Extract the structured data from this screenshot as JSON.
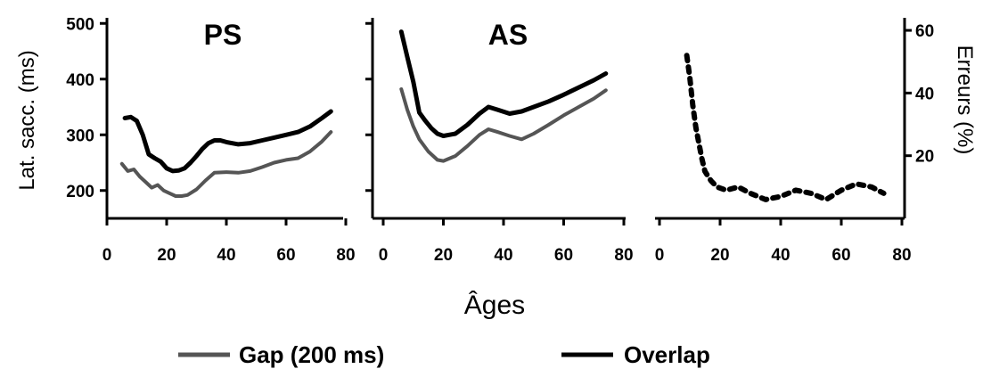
{
  "chart_data": [
    {
      "type": "line",
      "title": "PS",
      "ylabel": "Lat. sacc. (ms)",
      "xlim": [
        0,
        80
      ],
      "ylim": [
        150,
        510
      ],
      "xticks": [
        "0",
        "20",
        "40",
        "60",
        "80"
      ],
      "yticks": [
        "200",
        "300",
        "400",
        "500"
      ],
      "series": [
        {
          "name": "Overlap",
          "color": "#000000",
          "x": [
            6,
            8,
            10,
            12,
            14,
            16,
            18,
            20,
            22,
            24,
            26,
            28,
            30,
            32,
            34,
            36,
            38,
            40,
            44,
            48,
            52,
            56,
            60,
            64,
            68,
            72,
            75
          ],
          "y": [
            330,
            332,
            325,
            300,
            265,
            258,
            252,
            240,
            235,
            236,
            240,
            250,
            262,
            275,
            285,
            290,
            290,
            287,
            283,
            285,
            290,
            295,
            300,
            305,
            315,
            330,
            342
          ]
        },
        {
          "name": "Gap (200 ms)",
          "color": "#555555",
          "x": [
            5,
            7,
            9,
            11,
            13,
            15,
            17,
            19,
            21,
            23,
            25,
            27,
            30,
            33,
            36,
            40,
            44,
            48,
            52,
            56,
            60,
            64,
            68,
            72,
            75
          ],
          "y": [
            248,
            235,
            238,
            225,
            215,
            205,
            210,
            200,
            195,
            190,
            190,
            192,
            202,
            218,
            232,
            233,
            232,
            235,
            242,
            250,
            255,
            258,
            270,
            288,
            305
          ]
        }
      ]
    },
    {
      "type": "line",
      "title": "AS",
      "xlim": [
        0,
        80
      ],
      "ylim": [
        150,
        510
      ],
      "xticks": [
        "0",
        "20",
        "40",
        "60",
        "80"
      ],
      "series": [
        {
          "name": "Overlap",
          "color": "#000000",
          "x": [
            6,
            8,
            10,
            12,
            14,
            16,
            18,
            20,
            24,
            28,
            32,
            35,
            38,
            42,
            46,
            50,
            55,
            60,
            65,
            70,
            74
          ],
          "y": [
            485,
            440,
            395,
            340,
            325,
            312,
            302,
            298,
            302,
            318,
            338,
            350,
            345,
            338,
            342,
            350,
            360,
            372,
            385,
            398,
            410
          ]
        },
        {
          "name": "Gap (200 ms)",
          "color": "#555555",
          "x": [
            6,
            8,
            10,
            12,
            15,
            18,
            20,
            24,
            28,
            32,
            35,
            38,
            42,
            46,
            50,
            55,
            60,
            65,
            70,
            74
          ],
          "y": [
            382,
            345,
            315,
            292,
            270,
            255,
            253,
            262,
            280,
            300,
            310,
            305,
            298,
            292,
            302,
            318,
            335,
            350,
            365,
            380
          ]
        }
      ]
    },
    {
      "type": "line",
      "ylabel": "Erreurs (%)",
      "xlim": [
        0,
        80
      ],
      "ylim": [
        0,
        64
      ],
      "xticks": [
        "0",
        "20",
        "40",
        "60",
        "80"
      ],
      "yticks": [
        "20",
        "40",
        "60"
      ],
      "series": [
        {
          "style": "dotted",
          "color": "#000000",
          "x": [
            9,
            10,
            11,
            12,
            13,
            14,
            15,
            17,
            19,
            22,
            26,
            30,
            35,
            40,
            45,
            50,
            55,
            60,
            65,
            70,
            74
          ],
          "y": [
            52,
            45,
            36,
            29,
            24,
            19,
            15,
            12,
            10,
            9,
            10,
            8,
            6,
            7,
            9,
            8,
            6,
            9,
            11,
            10,
            8
          ]
        }
      ]
    }
  ],
  "xlabel": "Âges",
  "legend": [
    {
      "label": "Gap (200 ms)",
      "color": "#555555"
    },
    {
      "label": "Overlap",
      "color": "#000000"
    }
  ]
}
